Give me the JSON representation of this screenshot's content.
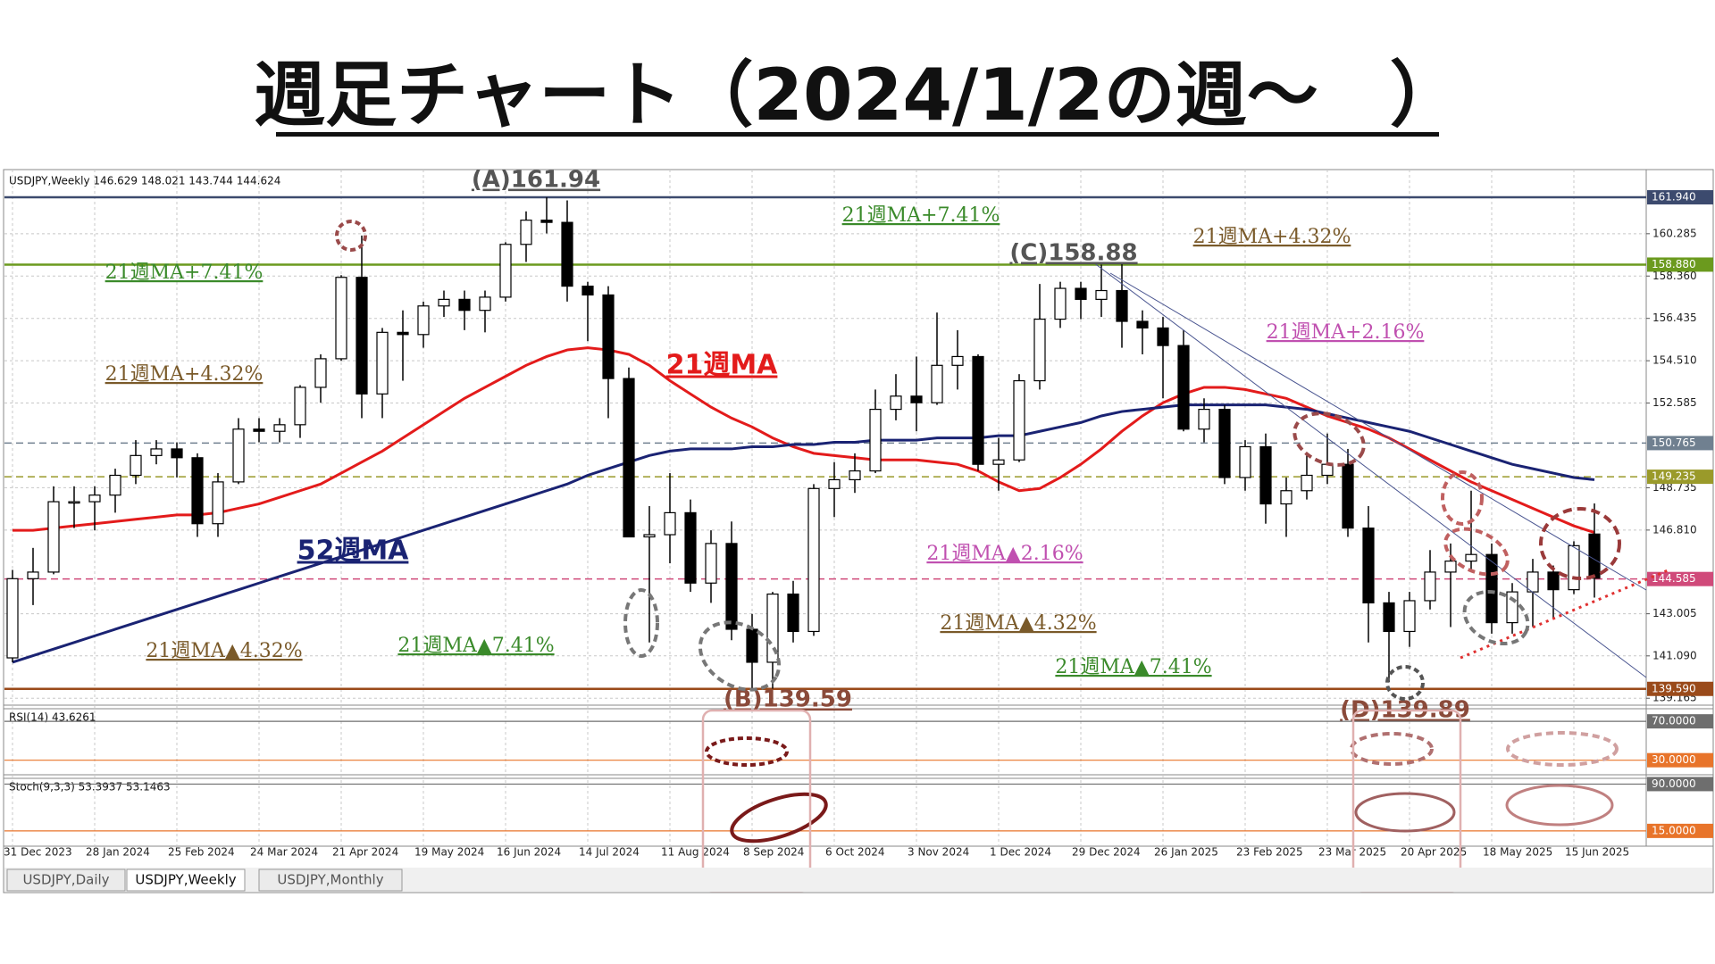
{
  "chart_data": {
    "type": "candlestick",
    "title": "週足チャート（2024/1/2の週～　）",
    "header": "USDJPY,Weekly  146.629 148.021 143.744 144.624",
    "x": [
      "31 Dec 2023",
      null,
      null,
      null,
      "28 Jan 2024",
      null,
      null,
      null,
      "25 Feb 2024",
      null,
      null,
      null,
      "24 Mar 2024",
      null,
      null,
      null,
      "21 Apr 2024",
      null,
      null,
      null,
      "19 May 2024",
      null,
      null,
      null,
      "16 Jun 2024",
      null,
      null,
      null,
      "14 Jul 2024",
      null,
      null,
      null,
      "11 Aug 2024",
      null,
      null,
      null,
      "8 Sep 2024",
      null,
      null,
      null,
      "6 Oct 2024",
      null,
      null,
      null,
      "3 Nov 2024",
      null,
      null,
      null,
      "1 Dec 2024",
      null,
      null,
      null,
      "29 Dec 2024",
      null,
      null,
      null,
      "26 Jan 2025",
      null,
      null,
      null,
      "23 Feb 2025",
      null,
      null,
      null,
      "23 Mar 2025",
      null,
      null,
      null,
      "20 Apr 2025",
      null,
      null,
      null,
      "18 May 2025",
      null,
      null,
      null,
      "15 Jun 2025",
      null
    ],
    "open": [
      141.0,
      144.6,
      144.9,
      148.1,
      148.1,
      148.4,
      149.3,
      150.2,
      150.5,
      150.1,
      147.1,
      149.0,
      151.4,
      151.3,
      151.6,
      153.3,
      154.6,
      158.3,
      153.0,
      155.8,
      155.7,
      157.0,
      157.3,
      156.8,
      157.4,
      159.8,
      160.9,
      160.8,
      157.9,
      157.5,
      153.7,
      146.5,
      146.6,
      147.6,
      144.4,
      146.2,
      142.3,
      140.8,
      143.9,
      142.2,
      148.7,
      149.1,
      149.5,
      152.3,
      152.9,
      152.6,
      154.3,
      154.7,
      149.8,
      150.0,
      153.6,
      156.4,
      157.8,
      157.3,
      157.7,
      156.3,
      156.0,
      155.2,
      151.4,
      152.3,
      149.2,
      150.6,
      148.0,
      148.6,
      149.3,
      149.8,
      146.9,
      143.5,
      142.2,
      143.6,
      144.9,
      145.4,
      145.7,
      142.6,
      144.0,
      144.9,
      144.1,
      146.63
    ],
    "high": [
      145.0,
      146.0,
      148.8,
      148.8,
      148.8,
      149.6,
      150.9,
      150.9,
      150.8,
      150.3,
      149.4,
      151.9,
      151.9,
      151.9,
      153.4,
      154.8,
      158.4,
      160.2,
      156.0,
      156.8,
      157.2,
      157.7,
      157.7,
      157.7,
      159.9,
      161.3,
      161.94,
      161.8,
      158.1,
      157.9,
      154.2,
      147.9,
      149.4,
      148.2,
      146.8,
      147.2,
      143.0,
      144.0,
      144.5,
      148.9,
      149.9,
      150.3,
      153.2,
      153.9,
      154.7,
      156.7,
      155.9,
      154.8,
      151.0,
      153.9,
      158.0,
      158.1,
      158.1,
      158.88,
      158.9,
      156.8,
      156.5,
      155.9,
      152.8,
      152.5,
      150.9,
      151.2,
      149.2,
      150.2,
      151.2,
      150.5,
      147.9,
      144.0,
      144.0,
      145.9,
      146.2,
      148.6,
      146.2,
      144.4,
      145.5,
      145.2,
      146.3,
      148.02
    ],
    "low": [
      140.8,
      143.4,
      144.8,
      146.9,
      146.8,
      147.6,
      148.9,
      149.8,
      149.2,
      146.5,
      146.5,
      148.9,
      150.8,
      150.8,
      151.0,
      152.6,
      154.5,
      151.9,
      151.9,
      153.6,
      155.1,
      156.5,
      155.9,
      155.8,
      157.2,
      159.0,
      160.3,
      157.2,
      155.4,
      151.9,
      146.5,
      141.7,
      145.3,
      144.0,
      143.5,
      141.8,
      139.59,
      139.6,
      141.7,
      142.0,
      147.4,
      148.5,
      149.4,
      151.8,
      151.3,
      152.5,
      153.2,
      149.5,
      148.6,
      149.9,
      153.2,
      156.0,
      156.4,
      156.5,
      155.1,
      154.8,
      152.8,
      151.3,
      150.8,
      148.9,
      148.6,
      147.1,
      146.5,
      148.2,
      148.9,
      146.5,
      141.7,
      139.89,
      141.5,
      143.2,
      142.4,
      144.9,
      142.1,
      142.1,
      142.4,
      142.8,
      143.9,
      143.74
    ],
    "close": [
      144.6,
      144.9,
      148.1,
      148.1,
      148.4,
      149.3,
      150.2,
      150.5,
      150.1,
      147.1,
      149.0,
      151.4,
      151.3,
      151.6,
      153.3,
      154.6,
      158.3,
      153.0,
      155.8,
      155.7,
      157.0,
      157.3,
      156.8,
      157.4,
      159.8,
      160.9,
      160.8,
      157.9,
      157.5,
      153.7,
      146.5,
      146.6,
      147.6,
      144.4,
      146.2,
      142.3,
      140.8,
      143.9,
      142.2,
      148.7,
      149.1,
      149.5,
      152.3,
      152.9,
      152.6,
      154.3,
      154.7,
      149.8,
      150.0,
      153.6,
      156.4,
      157.8,
      157.3,
      157.7,
      156.3,
      156.0,
      155.2,
      151.4,
      152.3,
      149.2,
      150.6,
      148.0,
      148.6,
      149.3,
      149.8,
      146.9,
      143.5,
      142.2,
      143.6,
      144.9,
      145.4,
      145.7,
      142.6,
      144.0,
      144.9,
      144.1,
      146.1,
      144.62
    ],
    "up_color": "#ffffff",
    "down_color": "#000000",
    "overlays": [
      {
        "color": "#e31b1b",
        "values": [
          146.8,
          146.8,
          146.9,
          147.0,
          147.1,
          147.2,
          147.3,
          147.4,
          147.5,
          147.5,
          147.6,
          147.8,
          148.0,
          148.3,
          148.6,
          148.9,
          149.4,
          149.9,
          150.4,
          151.0,
          151.6,
          152.2,
          152.8,
          153.3,
          153.8,
          154.3,
          154.7,
          155.0,
          155.1,
          155.0,
          154.8,
          154.3,
          153.6,
          153.0,
          152.4,
          151.9,
          151.5,
          151.0,
          150.6,
          150.3,
          150.2,
          150.1,
          150.0,
          150.0,
          150.0,
          149.9,
          149.8,
          149.5,
          149.0,
          148.6,
          148.7,
          149.2,
          149.8,
          150.5,
          151.3,
          152.0,
          152.6,
          153.0,
          153.3,
          153.3,
          153.2,
          153.0,
          152.8,
          152.4,
          152.0,
          151.7,
          151.4,
          151.0,
          150.5,
          150.0,
          149.5,
          149.0,
          148.6,
          148.2,
          147.8,
          147.4,
          147.0,
          146.7
        ]
      },
      {
        "color": "#1a2373",
        "values": [
          140.8,
          141.1,
          141.4,
          141.7,
          142.0,
          142.3,
          142.6,
          142.9,
          143.2,
          143.5,
          143.8,
          144.1,
          144.4,
          144.7,
          145.0,
          145.3,
          145.6,
          145.9,
          146.2,
          146.5,
          146.8,
          147.1,
          147.4,
          147.7,
          148.0,
          148.3,
          148.6,
          148.9,
          149.3,
          149.6,
          149.9,
          150.2,
          150.4,
          150.5,
          150.5,
          150.5,
          150.6,
          150.6,
          150.7,
          150.7,
          150.8,
          150.8,
          150.9,
          150.9,
          150.9,
          151.0,
          151.0,
          151.0,
          151.1,
          151.1,
          151.3,
          151.5,
          151.7,
          152.0,
          152.2,
          152.3,
          152.4,
          152.5,
          152.5,
          152.5,
          152.5,
          152.5,
          152.4,
          152.3,
          152.1,
          151.9,
          151.7,
          151.5,
          151.3,
          151.0,
          150.7,
          150.4,
          150.1,
          149.8,
          149.6,
          149.4,
          149.2,
          149.1
        ]
      }
    ],
    "ylim": [
      138.85,
      163.2
    ],
    "yticks": [
      {
        "value": 160.285,
        "label": "160.285"
      },
      {
        "value": 158.36,
        "label": "158.360"
      },
      {
        "value": 156.435,
        "label": "156.435"
      },
      {
        "value": 154.51,
        "label": "154.510"
      },
      {
        "value": 152.585,
        "label": "152.585"
      },
      {
        "value": 148.735,
        "label": "148.735"
      },
      {
        "value": 146.81,
        "label": "146.810"
      },
      {
        "value": 143.005,
        "label": "143.005"
      },
      {
        "value": 141.09,
        "label": "141.090"
      },
      {
        "value": 139.165,
        "label": "139.165"
      }
    ],
    "grid": true,
    "levels": [
      {
        "value": 161.94,
        "label": "161.940",
        "color": "#3c4a6e",
        "style": "solid"
      },
      {
        "value": 158.88,
        "label": "158.880",
        "color": "#6b9a1e",
        "style": "solid"
      },
      {
        "value": 150.765,
        "label": "150.765",
        "color": "#708090",
        "style": "dashed"
      },
      {
        "value": 149.235,
        "label": "149.235",
        "color": "#9a9a2a",
        "style": "dashed"
      },
      {
        "value": 144.585,
        "label": "144.585",
        "color": "#d04a7a",
        "style": "dashed"
      },
      {
        "value": 139.59,
        "label": "139.590",
        "color": "#9a4a1a",
        "style": "solid"
      }
    ],
    "annotations": [
      "(A)161.94",
      "(C)158.88",
      "(B)139.59",
      "(D)139.89",
      "21週MA",
      "52週MA",
      "21週MA+7.41%",
      "21週MA+7.41%",
      "21週MA+4.32%",
      "21週MA+4.32%",
      "21週MA+2.16%",
      "21週MA▲2.16%",
      "21週MA▲4.32%",
      "21週MA▲4.32%",
      "21週MA▲7.41%",
      "21週MA▲7.41%"
    ],
    "rsi": {
      "label": "RSI(14) 43.6261",
      "ylim": [
        15,
        83
      ],
      "levels": [
        {
          "value": 70,
          "label": "70.0000",
          "color": "#6e6e6e"
        },
        {
          "value": 30,
          "label": "30.0000",
          "color": "#e8742a"
        }
      ]
    },
    "stoch": {
      "label": "Stoch(9,3,3) 53.3937 53.1463",
      "ylim": [
        -9.5,
        99.2
      ],
      "levels": [
        {
          "value": 90,
          "label": "90.0000",
          "color": "#6e6e6e"
        },
        {
          "value": 15,
          "label": "15.0000",
          "color": "#e8742a"
        }
      ]
    }
  },
  "tabs": [
    "USDJPY,Daily",
    "USDJPY,Weekly",
    "USDJPY,Monthly"
  ]
}
